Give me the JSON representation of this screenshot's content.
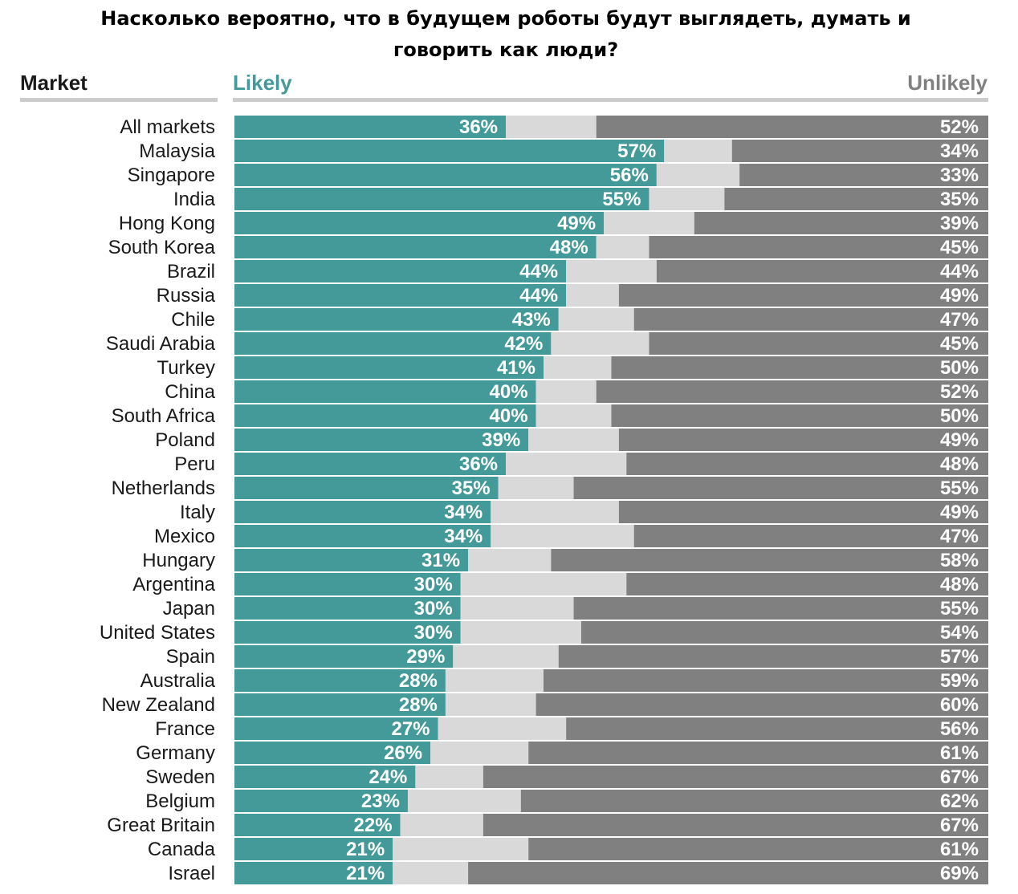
{
  "chart_data": {
    "type": "bar",
    "title": "Насколько вероятно, что в будущем роботы будут выглядеть, думать и говорить как люди?",
    "column_header": "Market",
    "left_label": "Likely",
    "right_label": "Unlikely",
    "categories": [
      "All markets",
      "Malaysia",
      "Singapore",
      "India",
      "Hong Kong",
      "South Korea",
      "Brazil",
      "Russia",
      "Chile",
      "Saudi Arabia",
      "Turkey",
      "China",
      "South Africa",
      "Poland",
      "Peru",
      "Netherlands",
      "Italy",
      "Mexico",
      "Hungary",
      "Argentina",
      "Japan",
      "United States",
      "Spain",
      "Australia",
      "New Zealand",
      "France",
      "Germany",
      "Sweden",
      "Belgium",
      "Great Britain",
      "Canada",
      "Israel"
    ],
    "series": [
      {
        "name": "Likely",
        "color": "#449a99",
        "values": [
          36,
          57,
          56,
          55,
          49,
          48,
          44,
          44,
          43,
          42,
          41,
          40,
          40,
          39,
          36,
          35,
          34,
          34,
          31,
          30,
          30,
          30,
          29,
          28,
          28,
          27,
          26,
          24,
          23,
          22,
          21,
          21
        ]
      },
      {
        "name": "",
        "color": "#d9d9d9",
        "values": [
          12,
          9,
          11,
          10,
          12,
          7,
          12,
          7,
          10,
          13,
          9,
          8,
          10,
          12,
          16,
          10,
          17,
          19,
          11,
          22,
          15,
          16,
          14,
          13,
          12,
          17,
          13,
          9,
          15,
          11,
          18,
          10
        ]
      },
      {
        "name": "Unlikely",
        "color": "#808080",
        "values": [
          52,
          34,
          33,
          35,
          39,
          45,
          44,
          49,
          47,
          45,
          50,
          52,
          50,
          49,
          48,
          55,
          49,
          47,
          58,
          48,
          55,
          54,
          57,
          59,
          60,
          56,
          61,
          67,
          62,
          67,
          61,
          69
        ]
      }
    ],
    "value_suffix": "%",
    "xlim": [
      0,
      100
    ],
    "stacked": true,
    "orientation": "horizontal",
    "colors": {
      "likely_header": "#449a99",
      "unlikely_header": "#808080",
      "label_text": "#ffffff",
      "category_text": "#1a1a1a"
    }
  }
}
